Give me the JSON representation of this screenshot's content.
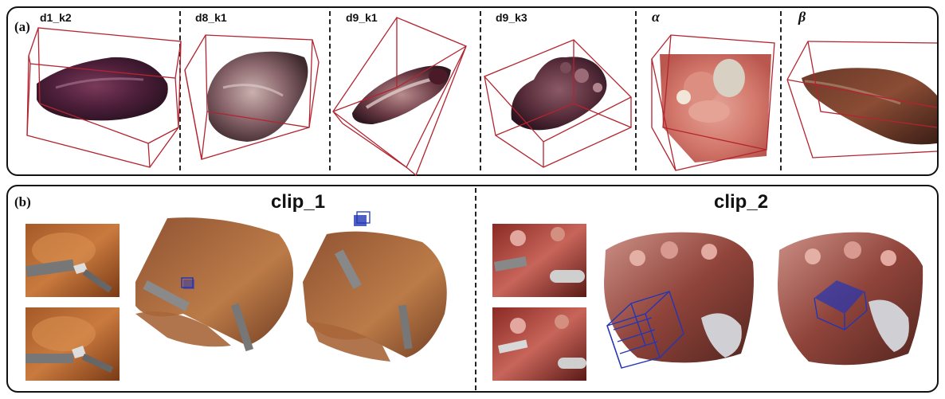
{
  "panel_a": {
    "label": "(a)",
    "items": [
      {
        "label": "d1_k2"
      },
      {
        "label": "d8_k1"
      },
      {
        "label": "d9_k1"
      },
      {
        "label": "d9_k3"
      },
      {
        "label": "α"
      },
      {
        "label": "β"
      }
    ]
  },
  "panel_b": {
    "label": "(b)",
    "clips": [
      {
        "title": "clip_1"
      },
      {
        "title": "clip_2"
      }
    ]
  },
  "colors": {
    "box_red": "#b3242f",
    "bbox_blue": "#2336b5",
    "frame": "#111111"
  }
}
